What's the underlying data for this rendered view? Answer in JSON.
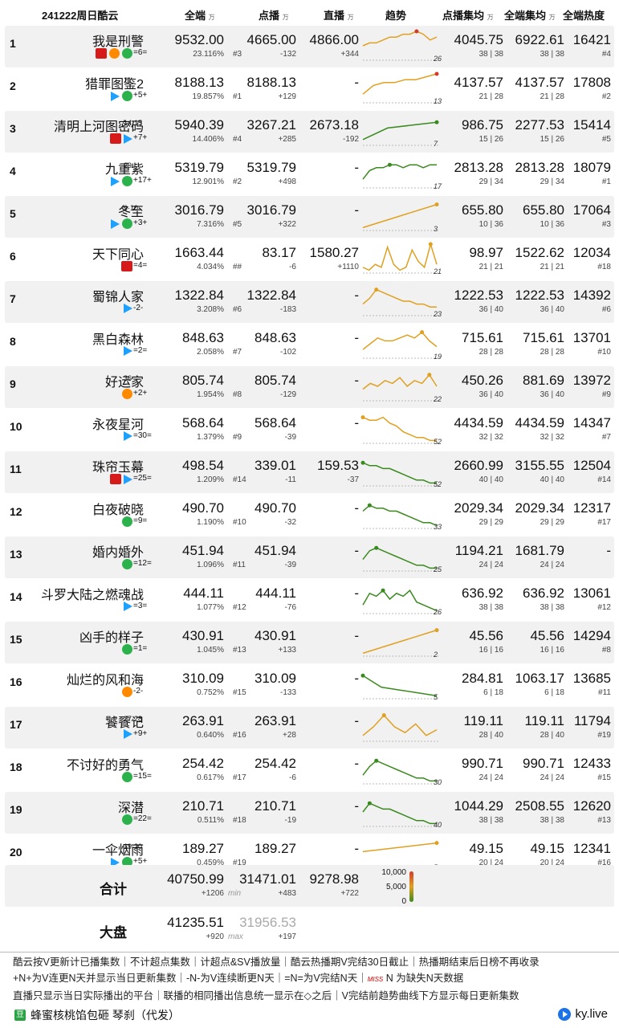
{
  "header": {
    "date": "241222周日酷云",
    "all": "全端",
    "unit": "万",
    "vod": "点播",
    "live": "直播",
    "trend": "趋势",
    "vod_avg": "点播集均",
    "all_avg": "全端集均",
    "heat": "全端热度"
  },
  "chart_data": {
    "type": "table",
    "columns": [
      "rank",
      "title",
      "all",
      "vod",
      "live",
      "vod_avg",
      "all_avg",
      "heat"
    ],
    "rows": [
      {
        "rank": "1",
        "title": "我是刑警",
        "ep": "",
        "chg": "=6=",
        "plat": [
          "cc",
          "mg",
          "iq"
        ],
        "all": "9532.00",
        "share": "23.116%",
        "vod": "4665.00",
        "vod_rank": "#3",
        "vod_chg": "-132",
        "live": "4866.00",
        "live_chg": "+344",
        "vod_avg": "4045.75",
        "vod_avg_ep": "38 | 38",
        "all_avg": "6922.61",
        "all_avg_ep": "38 | 38",
        "heat": "16421",
        "heat_rank": "#4",
        "days": "26",
        "trend": [
          5,
          6,
          6,
          7,
          8,
          8,
          9,
          9,
          10,
          9,
          7,
          8
        ]
      },
      {
        "rank": "2",
        "title": "猎罪图鉴2",
        "ep": "21",
        "chg": "+5+",
        "plat": [
          "tx",
          "iq"
        ],
        "all": "8188.13",
        "share": "19.857%",
        "vod": "8188.13",
        "vod_rank": "#1",
        "vod_chg": "+129",
        "live": "-",
        "live_chg": "",
        "vod_avg": "4137.57",
        "vod_avg_ep": "21 | 28",
        "all_avg": "4137.57",
        "all_avg_ep": "21 | 28",
        "heat": "17808",
        "heat_rank": "#2",
        "days": "13",
        "trend": [
          3,
          6,
          7,
          7,
          8,
          8,
          9,
          10
        ]
      },
      {
        "rank": "3",
        "title": "清明上河图密码",
        "ep": "14·15",
        "chg": "+7+",
        "plat": [
          "cc",
          "tx"
        ],
        "all": "5940.39",
        "share": "14.406%",
        "vod": "3267.21",
        "vod_rank": "#4",
        "vod_chg": "+285",
        "live": "2673.18",
        "live_chg": "-192",
        "vod_avg": "986.75",
        "vod_avg_ep": "15 | 26",
        "all_avg": "2277.53",
        "all_avg_ep": "15 | 26",
        "heat": "15414",
        "heat_rank": "#5",
        "days": "7",
        "trend": [
          2,
          6,
          7,
          8
        ]
      },
      {
        "rank": "4",
        "title": "九重紫",
        "ep": "29",
        "chg": "+17+",
        "plat": [
          "tx",
          "iq"
        ],
        "all": "5319.79",
        "share": "12.901%",
        "vod": "5319.79",
        "vod_rank": "#2",
        "vod_chg": "+498",
        "live": "-",
        "live_chg": "",
        "vod_avg": "2813.28",
        "vod_avg_ep": "29 | 34",
        "all_avg": "2813.28",
        "all_avg_ep": "29 | 34",
        "heat": "18079",
        "heat_rank": "#1",
        "days": "17",
        "trend": [
          3,
          6,
          7,
          7,
          8,
          8,
          7,
          8,
          8,
          7,
          8,
          8
        ]
      },
      {
        "rank": "5",
        "title": "冬至",
        "ep": "9·10",
        "chg": "+3+",
        "plat": [
          "tx",
          "iq"
        ],
        "all": "3016.79",
        "share": "7.316%",
        "vod": "3016.79",
        "vod_rank": "#5",
        "vod_chg": "+322",
        "live": "-",
        "live_chg": "",
        "vod_avg": "655.80",
        "vod_avg_ep": "10 | 36",
        "all_avg": "655.80",
        "all_avg_ep": "10 | 36",
        "heat": "17064",
        "heat_rank": "#3",
        "days": "3",
        "trend": [
          1,
          9
        ]
      },
      {
        "rank": "6",
        "title": "天下同心",
        "ep": "",
        "chg": "=4=",
        "plat": [
          "cc"
        ],
        "all": "1663.44",
        "share": "4.034%",
        "vod": "83.17",
        "vod_rank": "##",
        "vod_chg": "-6",
        "live": "1580.27",
        "live_chg": "+1110",
        "vod_avg": "98.97",
        "vod_avg_ep": "21 | 21",
        "all_avg": "1522.62",
        "all_avg_ep": "21 | 21",
        "heat": "12034",
        "heat_rank": "#18",
        "days": "21",
        "trend": [
          2,
          1,
          3,
          2,
          9,
          3,
          1,
          2,
          8,
          4,
          2,
          10,
          3
        ]
      },
      {
        "rank": "7",
        "title": "蜀锦人家",
        "ep": "",
        "chg": "-2-",
        "plat": [
          "tx"
        ],
        "all": "1322.84",
        "share": "3.208%",
        "vod": "1322.84",
        "vod_rank": "#6",
        "vod_chg": "-183",
        "live": "-",
        "live_chg": "",
        "vod_avg": "1222.53",
        "vod_avg_ep": "36 | 40",
        "all_avg": "1222.53",
        "all_avg_ep": "36 | 40",
        "heat": "14392",
        "heat_rank": "#6",
        "days": "23",
        "trend": [
          4,
          6,
          9,
          8,
          7,
          6,
          5,
          5,
          4,
          4,
          3,
          3
        ]
      },
      {
        "rank": "8",
        "title": "黑白森林",
        "ep": "",
        "chg": "=2=",
        "plat": [
          "tx"
        ],
        "all": "848.63",
        "share": "2.058%",
        "vod": "848.63",
        "vod_rank": "#7",
        "vod_chg": "-102",
        "live": "-",
        "live_chg": "",
        "vod_avg": "715.61",
        "vod_avg_ep": "28 | 28",
        "all_avg": "715.61",
        "all_avg_ep": "28 | 28",
        "heat": "13701",
        "heat_rank": "#10",
        "days": "19",
        "trend": [
          3,
          5,
          7,
          6,
          6,
          7,
          8,
          7,
          9,
          6,
          4
        ]
      },
      {
        "rank": "9",
        "title": "好运家",
        "ep": "36",
        "chg": "+2+",
        "plat": [
          "mg"
        ],
        "all": "805.74",
        "share": "1.954%",
        "vod": "805.74",
        "vod_rank": "#8",
        "vod_chg": "-129",
        "live": "-",
        "live_chg": "",
        "vod_avg": "450.26",
        "vod_avg_ep": "36 | 40",
        "all_avg": "881.69",
        "all_avg_ep": "36 | 40",
        "heat": "13972",
        "heat_rank": "#9",
        "days": "22",
        "trend": [
          4,
          6,
          5,
          7,
          6,
          8,
          5,
          7,
          6,
          9,
          5
        ]
      },
      {
        "rank": "10",
        "title": "永夜星河",
        "ep": "",
        "chg": "=30=",
        "plat": [
          "tx"
        ],
        "all": "568.64",
        "share": "1.379%",
        "vod": "568.64",
        "vod_rank": "#9",
        "vod_chg": "-39",
        "live": "-",
        "live_chg": "",
        "vod_avg": "4434.59",
        "vod_avg_ep": "32 | 32",
        "all_avg": "4434.59",
        "all_avg_ep": "32 | 32",
        "heat": "14347",
        "heat_rank": "#7",
        "days": "52",
        "trend": [
          9,
          8,
          8,
          9,
          7,
          6,
          4,
          3,
          2,
          2,
          1,
          1
        ]
      },
      {
        "rank": "11",
        "title": "珠帘玉幕",
        "ep": "",
        "chg": "=25=",
        "plat": [
          "cc",
          "tx"
        ],
        "all": "498.54",
        "share": "1.209%",
        "vod": "339.01",
        "vod_rank": "#14",
        "vod_chg": "-11",
        "live": "159.53",
        "live_chg": "-37",
        "vod_avg": "2660.99",
        "vod_avg_ep": "40 | 40",
        "all_avg": "3155.55",
        "all_avg_ep": "40 | 40",
        "heat": "12504",
        "heat_rank": "#14",
        "days": "52",
        "trend": [
          8,
          7,
          7,
          6,
          6,
          5,
          4,
          3,
          2,
          2,
          1,
          1
        ]
      },
      {
        "rank": "12",
        "title": "白夜破晓",
        "ep": "",
        "chg": "=9=",
        "plat": [
          "iq"
        ],
        "all": "490.70",
        "share": "1.190%",
        "vod": "490.70",
        "vod_rank": "#10",
        "vod_chg": "-32",
        "live": "-",
        "live_chg": "",
        "vod_avg": "2029.34",
        "vod_avg_ep": "29 | 29",
        "all_avg": "2029.34",
        "all_avg_ep": "29 | 29",
        "heat": "12317",
        "heat_rank": "#17",
        "days": "33",
        "trend": [
          6,
          8,
          7,
          7,
          6,
          6,
          5,
          4,
          3,
          2,
          2,
          1
        ]
      },
      {
        "rank": "13",
        "title": "婚内婚外",
        "ep": "",
        "chg": "=12=",
        "plat": [
          "iq"
        ],
        "all": "451.94",
        "share": "1.096%",
        "vod": "451.94",
        "vod_rank": "#11",
        "vod_chg": "-39",
        "live": "-",
        "live_chg": "",
        "vod_avg": "1194.21",
        "vod_avg_ep": "24 | 24",
        "all_avg": "1681.79",
        "all_avg_ep": "24 | 24",
        "heat": "-",
        "heat_rank": "",
        "days": "25",
        "trend": [
          4,
          7,
          8,
          7,
          6,
          5,
          4,
          3,
          2,
          2,
          1,
          1
        ]
      },
      {
        "rank": "14",
        "title": "斗罗大陆之燃魂战",
        "ep": "",
        "chg": "=3=",
        "plat": [
          "tx"
        ],
        "all": "444.11",
        "share": "1.077%",
        "vod": "444.11",
        "vod_rank": "#12",
        "vod_chg": "-76",
        "live": "-",
        "live_chg": "",
        "vod_avg": "636.92",
        "vod_avg_ep": "38 | 38",
        "all_avg": "636.92",
        "all_avg_ep": "38 | 38",
        "heat": "13061",
        "heat_rank": "#12",
        "days": "26",
        "trend": [
          3,
          7,
          6,
          8,
          5,
          7,
          6,
          8,
          4,
          3,
          2,
          1
        ]
      },
      {
        "rank": "15",
        "title": "凶手的样子",
        "ep": "",
        "chg": "=1=",
        "plat": [
          "iq"
        ],
        "all": "430.91",
        "share": "1.045%",
        "vod": "430.91",
        "vod_rank": "#13",
        "vod_chg": "+133",
        "live": "-",
        "live_chg": "",
        "vod_avg": "45.56",
        "vod_avg_ep": "16 | 16",
        "all_avg": "45.56",
        "all_avg_ep": "16 | 16",
        "heat": "14294",
        "heat_rank": "#8",
        "days": "2",
        "trend": [
          1,
          9
        ]
      },
      {
        "rank": "16",
        "title": "灿烂的风和海",
        "ep": "",
        "chg": "-2-",
        "plat": [
          "mg"
        ],
        "all": "310.09",
        "share": "0.752%",
        "vod": "310.09",
        "vod_rank": "#15",
        "vod_chg": "-133",
        "live": "-",
        "live_chg": "",
        "vod_avg": "284.81",
        "vod_avg_ep": "6 | 18",
        "all_avg": "1063.17",
        "all_avg_ep": "6 | 18",
        "heat": "13685",
        "heat_rank": "#11",
        "days": "5",
        "trend": [
          8,
          4,
          3,
          2,
          1
        ]
      },
      {
        "rank": "17",
        "title": "饕餮记",
        "ep": "27·28",
        "chg": "+9+",
        "plat": [
          "tx"
        ],
        "all": "263.91",
        "share": "0.640%",
        "vod": "263.91",
        "vod_rank": "#16",
        "vod_chg": "+28",
        "live": "-",
        "live_chg": "",
        "vod_avg": "119.11",
        "vod_avg_ep": "28 | 40",
        "all_avg": "119.11",
        "all_avg_ep": "28 | 40",
        "heat": "11794",
        "heat_rank": "#19",
        "days": "",
        "trend": [
          2,
          5,
          9,
          5,
          3,
          6,
          2,
          4
        ]
      },
      {
        "rank": "18",
        "title": "不讨好的勇气",
        "ep": "",
        "chg": "=15=",
        "plat": [
          "iq"
        ],
        "all": "254.42",
        "share": "0.617%",
        "vod": "254.42",
        "vod_rank": "#17",
        "vod_chg": "-6",
        "live": "-",
        "live_chg": "",
        "vod_avg": "990.71",
        "vod_avg_ep": "24 | 24",
        "all_avg": "990.71",
        "all_avg_ep": "24 | 24",
        "heat": "12433",
        "heat_rank": "#15",
        "days": "30",
        "trend": [
          3,
          6,
          8,
          7,
          6,
          5,
          4,
          3,
          2,
          2,
          1,
          1
        ]
      },
      {
        "rank": "19",
        "title": "深潜",
        "ep": "",
        "chg": "=22=",
        "plat": [
          "iq"
        ],
        "all": "210.71",
        "share": "0.511%",
        "vod": "210.71",
        "vod_rank": "#18",
        "vod_chg": "-19",
        "live": "-",
        "live_chg": "",
        "vod_avg": "1044.29",
        "vod_avg_ep": "38 | 38",
        "all_avg": "2508.55",
        "all_avg_ep": "38 | 38",
        "heat": "12620",
        "heat_rank": "#13",
        "days": "40",
        "trend": [
          5,
          8,
          7,
          6,
          6,
          5,
          4,
          3,
          2,
          2,
          1,
          1
        ]
      },
      {
        "rank": "20",
        "title": "一伞烟雨",
        "ep": "19·20",
        "chg": "+5+",
        "plat": [
          "tx",
          "iq"
        ],
        "all": "189.27",
        "share": "0.459%",
        "vod": "189.27",
        "vod_rank": "#19",
        "vod_chg": "",
        "live": "-",
        "live_chg": "",
        "vod_avg": "49.15",
        "vod_avg_ep": "20 | 24",
        "all_avg": "49.15",
        "all_avg_ep": "20 | 24",
        "heat": "12341",
        "heat_rank": "#16",
        "days": "5",
        "trend": [
          6,
          9
        ]
      }
    ],
    "totals": {
      "label": "合计",
      "all": "40750.99",
      "all_chg": "+1206",
      "vod": "31471.01",
      "vod_sub": "min",
      "vod_chg": "+483",
      "live": "9278.98",
      "live_chg": "+722"
    },
    "market": {
      "label": "大盘",
      "all": "41235.51",
      "all_chg": "+920",
      "vod": "31956.53",
      "vod_sub": "max",
      "vod_chg": "+197"
    },
    "legend": [
      "10,000",
      "5,000",
      "0"
    ]
  },
  "footer": {
    "line1": "酷云按V更新计已播集数｜不计超点集数｜计超点&SV播放量｜酷云热播期V完结30日截止｜热播期结束后日榜不再收录",
    "line2a": "+N+为V连更N天并显示当日更新集数｜-N-为V连续断更N天｜=N=为V完结N天｜",
    "miss": "MISS",
    "line2b": " N 为缺失N天数据",
    "line3": "直播只显示当日实际播出的平台｜联播的相同播出信息统一显示在◇之后｜V完结前趋势曲线下方显示每日更新集数",
    "credit": "蜂蜜核桃馅包砸 琴刹（代发）",
    "site": "ky.live",
    "credit_icon": "豆"
  },
  "colors": {
    "line": "#3a8a1e",
    "warm": "#e0a020",
    "hot": "#d23b2b",
    "alt_row": "#f1f1f1"
  }
}
